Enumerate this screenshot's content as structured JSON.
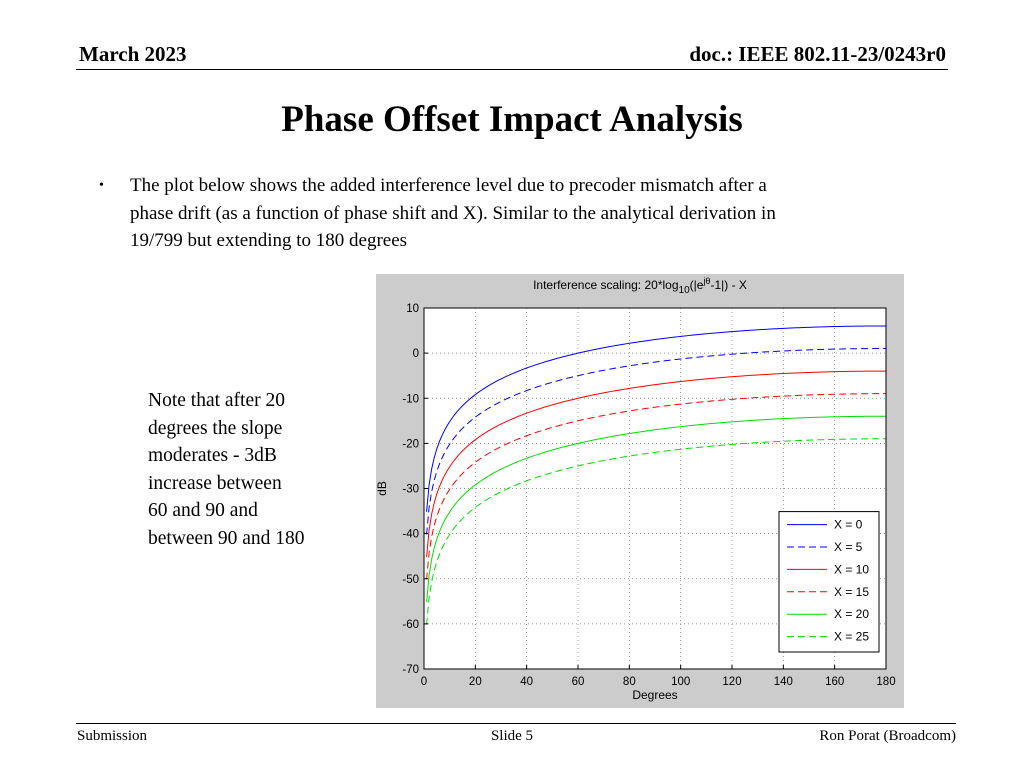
{
  "header": {
    "date": "March 2023",
    "doc": "doc.: IEEE 802.11-23/0243r0"
  },
  "title": "Phase Offset Impact Analysis",
  "bullet": {
    "symbol": "•",
    "lines": [
      "The plot below shows the added interference level due to precoder mismatch after a",
      "phase drift (as a function of phase shift and X). Similar to the analytical derivation in",
      "19/799 but extending to 180 degrees"
    ]
  },
  "note": {
    "lines": [
      "Note that after 20",
      "degrees the slope",
      "moderates  - 3dB",
      "increase between",
      "60 and 90 and",
      "between 90 and 180"
    ]
  },
  "footer": {
    "left": "Submission",
    "center": "Slide 5",
    "right": "Ron Porat (Broadcom)"
  },
  "chart_data": {
    "type": "line",
    "title_parts": {
      "pre": "Interference scaling: 20*log",
      "sub": "10",
      "mid": "(|e",
      "sup": "jθ",
      "post": "-1|) - X"
    },
    "xlabel": "Degrees",
    "ylabel": "dB",
    "xlim": [
      0,
      180
    ],
    "ylim": [
      -70,
      10
    ],
    "xticks": [
      0,
      20,
      40,
      60,
      80,
      100,
      120,
      140,
      160,
      180
    ],
    "yticks": [
      10,
      0,
      -10,
      -20,
      -30,
      -40,
      -50,
      -60,
      -70
    ],
    "grid": true,
    "legend_position": "bottom-right",
    "x_step_deg": 1,
    "curve_formula": "y = 20*log10(|e^(j*theta) - 1|) - X",
    "series": [
      {
        "name": "X = 0",
        "offset": 0,
        "color": "#0000ff",
        "dashed": false
      },
      {
        "name": "X = 5",
        "offset": 5,
        "color": "#0000ff",
        "dashed": true
      },
      {
        "name": "X = 10",
        "offset": 10,
        "color": "#ff0000",
        "dashed": false
      },
      {
        "name": "X = 15",
        "offset": 15,
        "color": "#ff0000",
        "dashed": true
      },
      {
        "name": "X = 20",
        "offset": 20,
        "color": "#00dd00",
        "dashed": false
      },
      {
        "name": "X = 25",
        "offset": 25,
        "color": "#00dd00",
        "dashed": true
      }
    ]
  }
}
